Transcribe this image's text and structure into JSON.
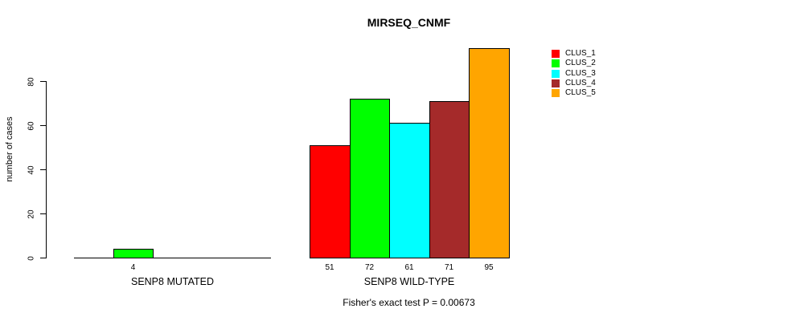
{
  "chart_data": {
    "type": "bar",
    "title": "MIRSEQ_CNMF",
    "ylabel": "number of cases",
    "xlabel": "",
    "yticks": [
      0,
      20,
      40,
      60,
      80
    ],
    "ylim": [
      0,
      95
    ],
    "grid": false,
    "legend_position": "top-right",
    "legend": [
      {
        "label": "CLUS_1",
        "color": "#FF0000"
      },
      {
        "label": "CLUS_2",
        "color": "#00FF00"
      },
      {
        "label": "CLUS_3",
        "color": "#00FFFF"
      },
      {
        "label": "CLUS_4",
        "color": "#A52A2A"
      },
      {
        "label": "CLUS_5",
        "color": "#FFA500"
      }
    ],
    "groups": [
      {
        "label": "SENP8 MUTATED",
        "values": [
          0,
          4,
          0,
          0,
          0
        ]
      },
      {
        "label": "SENP8 WILD-TYPE",
        "values": [
          51,
          72,
          61,
          71,
          95
        ]
      }
    ],
    "bar_value_labels_shown_for_nonzero": true,
    "annotation": "Fisher's exact test P = 0.00673"
  },
  "colors": {
    "background": "#FFFFFF",
    "axis": "#000000",
    "bar_border": "#000000",
    "text": "#000000"
  }
}
